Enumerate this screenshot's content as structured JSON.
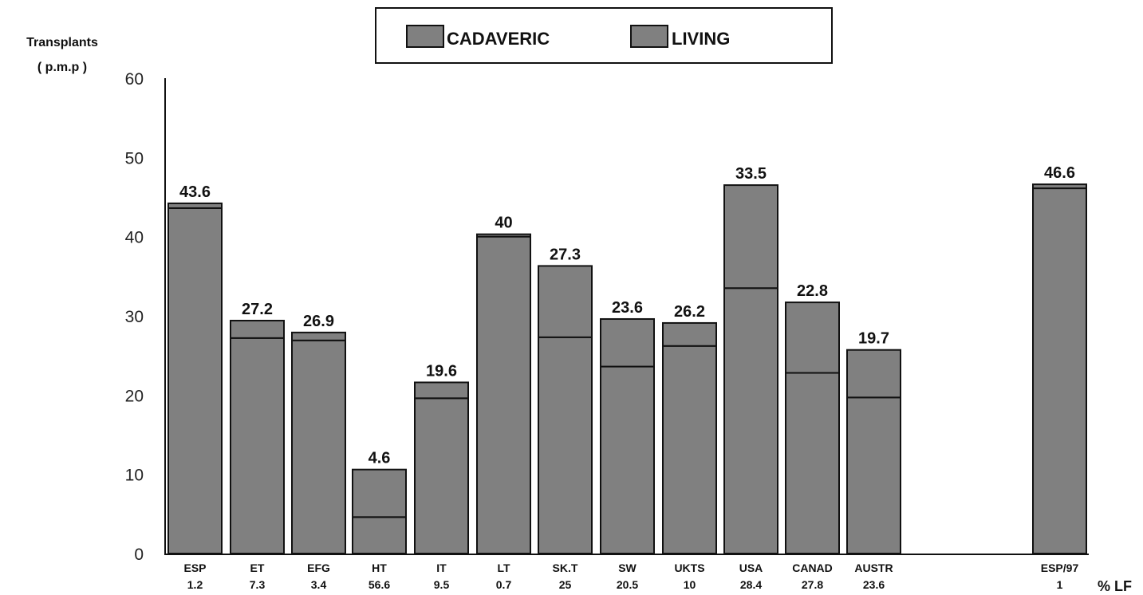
{
  "chart_data": {
    "type": "bar",
    "stacked": true,
    "ylabel": "Transplants ( p.m.p )",
    "ylim": [
      0,
      60
    ],
    "yticks": [
      0,
      10,
      20,
      30,
      40,
      50,
      60
    ],
    "grid": false,
    "legend_position": "top-center",
    "categories": [
      "ESP",
      "ET",
      "EFG",
      "HT",
      "IT",
      "LT",
      "SK.T",
      "SW",
      "UKTS",
      "USA",
      "CANAD",
      "AUSTR",
      "ESP/97"
    ],
    "sub_labels": [
      "1.2",
      "7.3",
      "3.4",
      "56.6",
      "9.5",
      "0.7",
      "25",
      "20.5",
      "10",
      "28.4",
      "27.8",
      "23.6",
      "1"
    ],
    "sub_label_axis_title": "% LF",
    "top_labels": [
      "43.6",
      "27.2",
      "26.9",
      "4.6",
      "19.6",
      "40",
      "27.3",
      "23.6",
      "26.2",
      "33.5",
      "22.8",
      "19.7",
      "46.6"
    ],
    "series": [
      {
        "name": "CADAVERIC",
        "values": [
          43.6,
          27.2,
          26.9,
          4.6,
          19.6,
          40,
          27.3,
          23.6,
          26.2,
          33.5,
          22.8,
          19.7,
          46.1
        ]
      },
      {
        "name": "LIVING",
        "values": [
          0.6,
          2.2,
          1.0,
          6.0,
          2.0,
          0.3,
          9.0,
          6.0,
          2.9,
          13.0,
          8.9,
          6.0,
          0.5
        ]
      }
    ],
    "colors": {
      "bar_fill": "#808080",
      "bar_stroke": "#111111",
      "text": "#111111"
    }
  }
}
